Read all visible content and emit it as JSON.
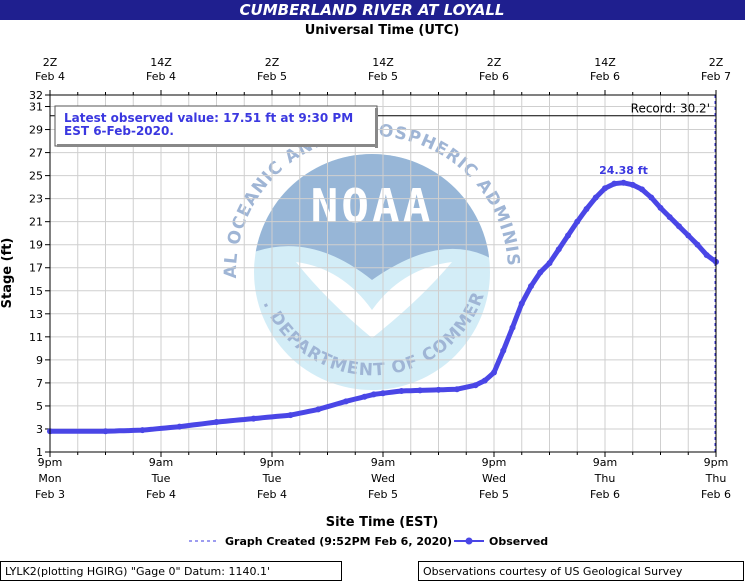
{
  "chart_data": {
    "type": "line",
    "title": "CUMBERLAND RIVER AT LOYALL",
    "top_axis_title": "Universal Time (UTC)",
    "top_ticks": [
      {
        "t": 0,
        "l1": "2Z",
        "l2": "Feb 4"
      },
      {
        "t": 12,
        "l1": "14Z",
        "l2": "Feb 4"
      },
      {
        "t": 24,
        "l1": "2Z",
        "l2": "Feb 5"
      },
      {
        "t": 36,
        "l1": "14Z",
        "l2": "Feb 5"
      },
      {
        "t": 48,
        "l1": "2Z",
        "l2": "Feb 6"
      },
      {
        "t": 60,
        "l1": "14Z",
        "l2": "Feb 6"
      },
      {
        "t": 72,
        "l1": "2Z",
        "l2": "Feb 7"
      }
    ],
    "bottom_axis_title": "Site Time (EST)",
    "bottom_ticks": [
      {
        "t": 0,
        "l1": "9pm",
        "l2": "Mon",
        "l3": "Feb 3"
      },
      {
        "t": 12,
        "l1": "9am",
        "l2": "Tue",
        "l3": "Feb 4"
      },
      {
        "t": 24,
        "l1": "9pm",
        "l2": "Tue",
        "l3": "Feb 4"
      },
      {
        "t": 36,
        "l1": "9am",
        "l2": "Wed",
        "l3": "Feb 5"
      },
      {
        "t": 48,
        "l1": "9pm",
        "l2": "Wed",
        "l3": "Feb 5"
      },
      {
        "t": 60,
        "l1": "9am",
        "l2": "Thu",
        "l3": "Feb 6"
      },
      {
        "t": 72,
        "l1": "9pm",
        "l2": "Thu",
        "l3": "Feb 6"
      }
    ],
    "ylabel": "Stage (ft)",
    "ylim": [
      1,
      32
    ],
    "yticks": [
      1,
      3,
      5,
      7,
      9,
      11,
      13,
      15,
      17,
      19,
      21,
      23,
      25,
      27,
      29,
      31,
      32
    ],
    "grid": true,
    "record": {
      "value": 30.2,
      "label": "Record: 30.2'"
    },
    "annotation": "Latest observed value: 17.51 ft at 9:30 PM EST 6-Feb-2020.",
    "peak_label": "24.38 ft",
    "peak_point": {
      "t": 62,
      "y": 24.38
    },
    "graph_created_t": 72,
    "series": [
      {
        "name": "Observed",
        "x": [
          0,
          6,
          10,
          14,
          18,
          22,
          26,
          29,
          32,
          34,
          35,
          36,
          38,
          40,
          42,
          44,
          46,
          47,
          48,
          49,
          50,
          51,
          52,
          53,
          54,
          55,
          56,
          57,
          58,
          59,
          60,
          61,
          62,
          63,
          64,
          65,
          66,
          67,
          68,
          69,
          70,
          71,
          72
        ],
        "y": [
          2.8,
          2.8,
          2.9,
          3.2,
          3.6,
          3.9,
          4.2,
          4.7,
          5.4,
          5.8,
          6.0,
          6.1,
          6.3,
          6.35,
          6.4,
          6.45,
          6.8,
          7.2,
          7.9,
          9.8,
          11.8,
          13.9,
          15.4,
          16.6,
          17.4,
          18.6,
          19.8,
          21.0,
          22.1,
          23.1,
          23.9,
          24.3,
          24.38,
          24.2,
          23.8,
          23.1,
          22.2,
          21.4,
          20.6,
          19.8,
          19.0,
          18.1,
          17.51
        ]
      }
    ]
  },
  "legend": {
    "graph_created": "Graph Created (9:52PM Feb 6, 2020)",
    "observed": "Observed"
  },
  "footer": {
    "left": "LYLK2(plotting HGIRG) \"Gage 0\" Datum: 1140.1'",
    "right": "Observations courtesy of US Geological Survey"
  },
  "watermark": {
    "logo_text": "NOAA",
    "ring_text": "NATIONAL OCEANIC AND ATMOSPHERIC ADMINISTRATION",
    "bottom_text": "U.S. DEPARTMENT OF COMMERCE"
  },
  "colors": {
    "title_bg": "#1f1f8f",
    "series": "#4a46e6",
    "annotation_text": "#3b38e0"
  }
}
